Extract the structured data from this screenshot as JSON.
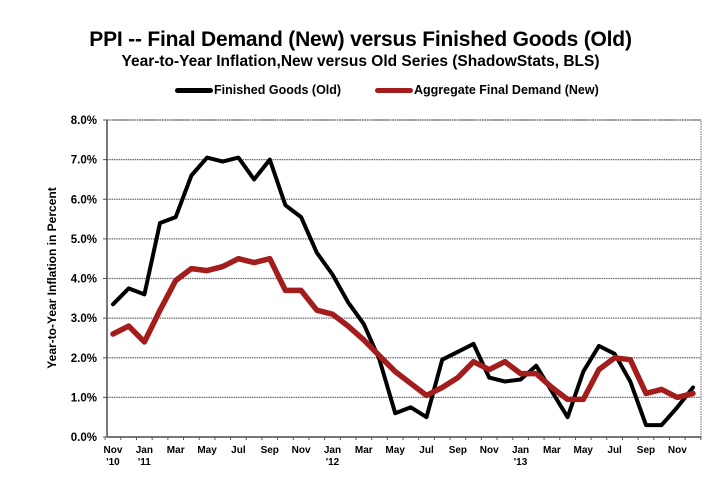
{
  "chart_data": {
    "type": "line",
    "title": "PPI -- Final Demand (New) versus Finished Goods (Old)",
    "subtitle": "Year-to-Year Inflation,New versus Old Series (ShadowStats, BLS)",
    "xlabel": "",
    "ylabel": "Year-to-Year Inflation in Percent",
    "ylim": [
      0,
      8
    ],
    "yticks": [
      "0.0%",
      "1.0%",
      "2.0%",
      "3.0%",
      "4.0%",
      "5.0%",
      "6.0%",
      "7.0%",
      "8.0%"
    ],
    "grid": true,
    "legend_position": "top-center",
    "x": [
      "Nov 2010",
      "Dec 2010",
      "Jan 2011",
      "Feb 2011",
      "Mar 2011",
      "Apr 2011",
      "May 2011",
      "Jun 2011",
      "Jul 2011",
      "Aug 2011",
      "Sep 2011",
      "Oct 2011",
      "Nov 2011",
      "Dec 2011",
      "Jan 2012",
      "Feb 2012",
      "Mar 2012",
      "Apr 2012",
      "May 2012",
      "Jun 2012",
      "Jul 2012",
      "Aug 2012",
      "Sep 2012",
      "Oct 2012",
      "Nov 2012",
      "Dec 2012",
      "Jan 2013",
      "Feb 2013",
      "Mar 2013",
      "Apr 2013",
      "May 2013",
      "Jun 2013",
      "Jul 2013",
      "Aug 2013",
      "Sep 2013",
      "Oct 2013",
      "Nov 2013",
      "Dec 2013"
    ],
    "xtick_labels": [
      {
        "index": 0,
        "line1": "Nov",
        "line2": "'10"
      },
      {
        "index": 2,
        "line1": "Jan",
        "line2": "'11"
      },
      {
        "index": 4,
        "line1": "Mar",
        "line2": ""
      },
      {
        "index": 6,
        "line1": "May",
        "line2": ""
      },
      {
        "index": 8,
        "line1": "Jul",
        "line2": ""
      },
      {
        "index": 10,
        "line1": "Sep",
        "line2": ""
      },
      {
        "index": 12,
        "line1": "Nov",
        "line2": ""
      },
      {
        "index": 14,
        "line1": "Jan",
        "line2": "'12"
      },
      {
        "index": 16,
        "line1": "Mar",
        "line2": ""
      },
      {
        "index": 18,
        "line1": "May",
        "line2": ""
      },
      {
        "index": 20,
        "line1": "Jul",
        "line2": ""
      },
      {
        "index": 22,
        "line1": "Sep",
        "line2": ""
      },
      {
        "index": 24,
        "line1": "Nov",
        "line2": ""
      },
      {
        "index": 26,
        "line1": "Jan",
        "line2": "'13"
      },
      {
        "index": 28,
        "line1": "Mar",
        "line2": ""
      },
      {
        "index": 30,
        "line1": "May",
        "line2": ""
      },
      {
        "index": 32,
        "line1": "Jul",
        "line2": ""
      },
      {
        "index": 34,
        "line1": "Sep",
        "line2": ""
      },
      {
        "index": 36,
        "line1": "Nov",
        "line2": ""
      }
    ],
    "series": [
      {
        "name": "Finished Goods (Old)",
        "color": "#000000",
        "values": [
          3.35,
          3.75,
          3.6,
          5.4,
          5.55,
          6.6,
          7.05,
          6.95,
          7.05,
          6.5,
          7.0,
          5.85,
          5.55,
          4.65,
          4.1,
          3.4,
          2.85,
          1.95,
          0.6,
          0.75,
          0.5,
          1.95,
          2.15,
          2.35,
          1.5,
          1.4,
          1.45,
          1.8,
          1.15,
          0.5,
          1.65,
          2.3,
          2.1,
          1.4,
          0.3,
          0.3,
          0.75,
          1.25
        ]
      },
      {
        "name": "Aggregate Final Demand (New)",
        "color": "#a31d1d",
        "values": [
          2.6,
          2.8,
          2.4,
          3.2,
          3.95,
          4.25,
          4.2,
          4.3,
          4.5,
          4.4,
          4.5,
          3.7,
          3.7,
          3.2,
          3.1,
          2.8,
          2.45,
          2.05,
          1.65,
          1.35,
          1.05,
          1.25,
          1.5,
          1.9,
          1.7,
          1.9,
          1.6,
          1.6,
          1.25,
          0.95,
          0.95,
          1.7,
          2.0,
          1.95,
          1.1,
          1.2,
          1.0,
          1.1
        ]
      }
    ]
  }
}
